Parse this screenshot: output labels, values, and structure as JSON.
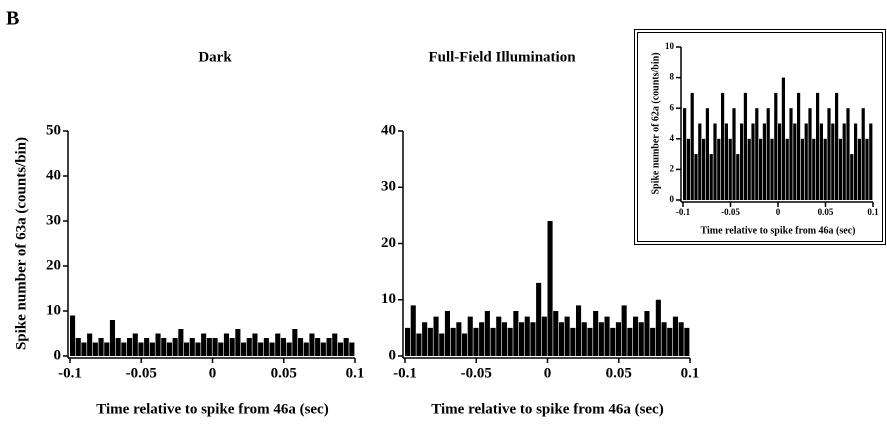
{
  "panel_label": "B",
  "chart_data": [
    {
      "type": "histogram",
      "title": "Dark",
      "ylabel": "Spike number of 63a (counts/bin)",
      "xlabel": "Time relative to spike from 46a (sec)",
      "bins": [
        -0.1,
        -0.096,
        -0.092,
        -0.088,
        -0.084,
        -0.08,
        -0.076,
        -0.072,
        -0.068,
        -0.064,
        -0.06,
        -0.056,
        -0.052,
        -0.048,
        -0.044,
        -0.04,
        -0.036,
        -0.032,
        -0.028,
        -0.024,
        -0.02,
        -0.016,
        -0.012,
        -0.008,
        -0.004,
        0,
        0.004,
        0.008,
        0.012,
        0.016,
        0.02,
        0.024,
        0.028,
        0.032,
        0.036,
        0.04,
        0.044,
        0.048,
        0.052,
        0.056,
        0.06,
        0.064,
        0.068,
        0.072,
        0.076,
        0.08,
        0.084,
        0.088,
        0.092,
        0.096,
        0.1
      ],
      "values": [
        9,
        4,
        3,
        5,
        3,
        4,
        3,
        8,
        4,
        3,
        4,
        5,
        3,
        4,
        3,
        5,
        4,
        3,
        4,
        6,
        3,
        4,
        3,
        5,
        4,
        4,
        3,
        5,
        4,
        6,
        3,
        4,
        5,
        3,
        4,
        3,
        5,
        4,
        3,
        6,
        4,
        3,
        5,
        4,
        3,
        4,
        5,
        3,
        4,
        3
      ],
      "color": "#000000",
      "xlim": [
        -0.1,
        0.1
      ],
      "xticks": [
        -0.1,
        -0.05,
        0,
        0.05,
        0.1
      ],
      "ylim": [
        0,
        50
      ],
      "yticks": [
        0,
        10,
        20,
        30,
        40,
        50
      ]
    },
    {
      "type": "histogram",
      "title": "Full-Field Illumination",
      "xlabel": "Time relative to spike from 46a (sec)",
      "bins": [
        -0.1,
        -0.096,
        -0.092,
        -0.088,
        -0.084,
        -0.08,
        -0.076,
        -0.072,
        -0.068,
        -0.064,
        -0.06,
        -0.056,
        -0.052,
        -0.048,
        -0.044,
        -0.04,
        -0.036,
        -0.032,
        -0.028,
        -0.024,
        -0.02,
        -0.016,
        -0.012,
        -0.008,
        -0.004,
        0,
        0.004,
        0.008,
        0.012,
        0.016,
        0.02,
        0.024,
        0.028,
        0.032,
        0.036,
        0.04,
        0.044,
        0.048,
        0.052,
        0.056,
        0.06,
        0.064,
        0.068,
        0.072,
        0.076,
        0.08,
        0.084,
        0.088,
        0.092,
        0.096,
        0.1
      ],
      "values": [
        5,
        9,
        4,
        6,
        5,
        7,
        4,
        8,
        5,
        6,
        4,
        7,
        5,
        6,
        8,
        5,
        7,
        6,
        5,
        8,
        6,
        7,
        6,
        13,
        7,
        24,
        8,
        6,
        7,
        5,
        9,
        6,
        5,
        8,
        6,
        7,
        5,
        6,
        9,
        5,
        7,
        6,
        8,
        5,
        10,
        6,
        5,
        7,
        6,
        5
      ],
      "color": "#000000",
      "xlim": [
        -0.1,
        0.1
      ],
      "xticks": [
        -0.1,
        -0.05,
        0,
        0.05,
        0.1
      ],
      "ylim": [
        0,
        40
      ],
      "yticks": [
        0,
        10,
        20,
        30,
        40
      ]
    },
    {
      "type": "histogram",
      "ylabel": "Spike number of 62a (counts/bin)",
      "xlabel": "Time relative to spike from 46a (sec)",
      "bins": [
        -0.1,
        -0.096,
        -0.092,
        -0.088,
        -0.084,
        -0.08,
        -0.076,
        -0.072,
        -0.068,
        -0.064,
        -0.06,
        -0.056,
        -0.052,
        -0.048,
        -0.044,
        -0.04,
        -0.036,
        -0.032,
        -0.028,
        -0.024,
        -0.02,
        -0.016,
        -0.012,
        -0.008,
        -0.004,
        0,
        0.004,
        0.008,
        0.012,
        0.016,
        0.02,
        0.024,
        0.028,
        0.032,
        0.036,
        0.04,
        0.044,
        0.048,
        0.052,
        0.056,
        0.06,
        0.064,
        0.068,
        0.072,
        0.076,
        0.08,
        0.084,
        0.088,
        0.092,
        0.096,
        0.1
      ],
      "values": [
        6,
        4,
        7,
        3,
        5,
        4,
        6,
        3,
        5,
        4,
        7,
        5,
        4,
        6,
        3,
        5,
        7,
        4,
        5,
        6,
        4,
        5,
        6,
        4,
        7,
        5,
        8,
        4,
        6,
        5,
        7,
        4,
        5,
        6,
        4,
        7,
        5,
        4,
        6,
        5,
        7,
        4,
        5,
        6,
        3,
        5,
        4,
        6,
        4,
        5
      ],
      "color": "#000000",
      "xlim": [
        -0.1,
        0.1
      ],
      "xticks": [
        -0.1,
        -0.05,
        0,
        0.05,
        0.1
      ],
      "ylim": [
        0,
        10
      ],
      "yticks": [
        0,
        2,
        4,
        6,
        8,
        10
      ]
    }
  ]
}
